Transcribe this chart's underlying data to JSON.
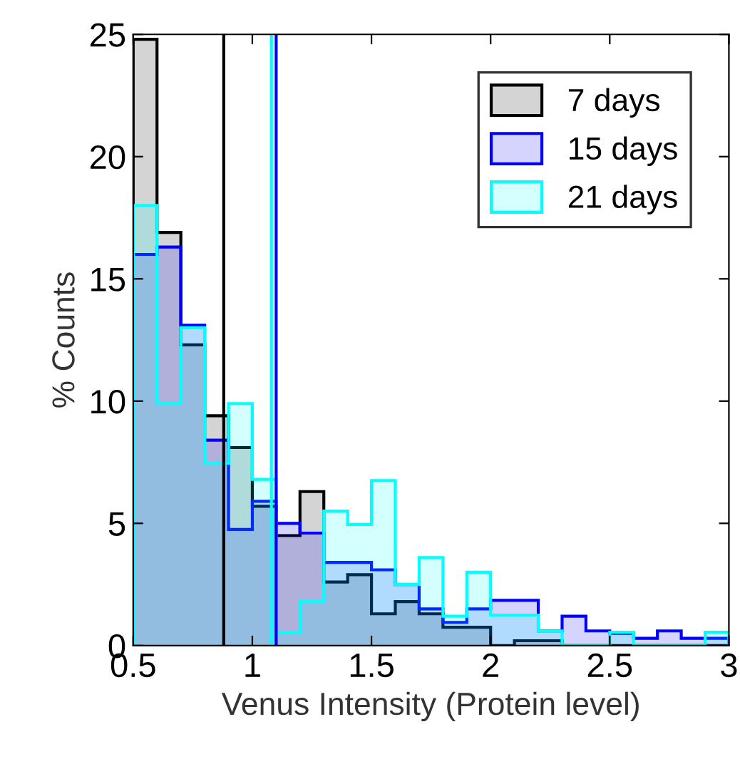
{
  "chart_data": {
    "type": "histogram",
    "xlabel": "Venus Intensity (Protein level)",
    "ylabel": "% Counts",
    "bins": [
      0.5,
      0.6,
      0.7,
      0.8,
      0.9,
      1.0,
      1.1,
      1.2,
      1.3,
      1.4,
      1.5,
      1.6,
      1.7,
      1.8,
      1.9,
      2.0,
      2.1,
      2.2,
      2.3,
      2.4,
      2.5,
      2.6,
      2.7,
      2.8,
      2.9,
      3.0
    ],
    "series": [
      {
        "name": "7 days",
        "color": "#000000",
        "values": [
          24.8,
          16.9,
          12.3,
          9.4,
          8.1,
          5.7,
          4.5,
          6.3,
          2.6,
          2.9,
          1.3,
          1.8,
          1.3,
          0.75,
          0.75,
          0,
          0.2,
          0.2,
          0,
          0,
          0,
          0,
          0,
          0,
          0
        ]
      },
      {
        "name": "15 days",
        "color": "#0000ff",
        "values": [
          16.0,
          16.3,
          13.1,
          8.4,
          4.75,
          5.9,
          5.0,
          4.6,
          3.4,
          3.4,
          3.1,
          2.5,
          1.5,
          0.95,
          1.5,
          1.85,
          1.85,
          0.6,
          1.2,
          0.6,
          0.5,
          0.3,
          0.6,
          0.3,
          0.3
        ]
      },
      {
        "name": "21 days",
        "color": "#00ffff",
        "values": [
          18.0,
          9.9,
          13.0,
          7.45,
          9.9,
          6.8,
          0.55,
          1.8,
          5.5,
          4.95,
          6.75,
          2.5,
          3.6,
          1.2,
          3.0,
          1.25,
          1.25,
          0.6,
          0,
          0,
          0.55,
          0,
          0,
          0,
          0.55
        ]
      }
    ],
    "ref_lines": [
      {
        "axis": "x",
        "value": 0.88,
        "color": "#000000"
      },
      {
        "axis": "x",
        "value": 1.08,
        "color": "#00ffff"
      },
      {
        "axis": "x",
        "value": 1.1,
        "color": "#0000ff"
      }
    ],
    "xlim": [
      0.5,
      3
    ],
    "ylim": [
      0,
      25
    ],
    "xticks": [
      0.5,
      1,
      1.5,
      2,
      2.5,
      3
    ],
    "yticks": [
      0,
      5,
      10,
      15,
      20,
      25
    ],
    "legend": "top right",
    "grid": false
  }
}
